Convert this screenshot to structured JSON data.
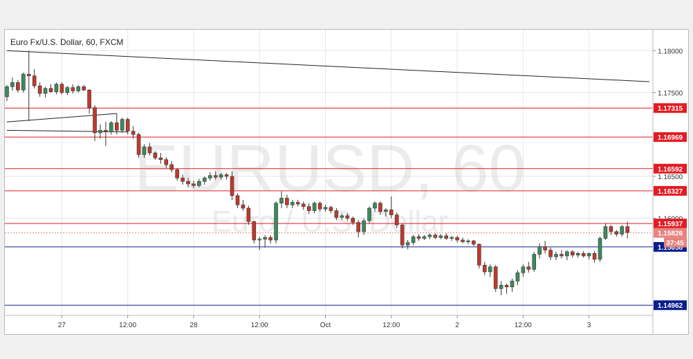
{
  "chart_data": {
    "type": "candlestick",
    "title": "Euro Fx/U.S. Dollar, 60, FXCM",
    "watermark": {
      "symbol": "EURUSD, 60",
      "description": "Euro / U.S. Dollar"
    },
    "ylim": [
      1.1484,
      1.1825
    ],
    "y_ticks": [
      {
        "value": 1.18,
        "label": "1.18000"
      },
      {
        "value": 1.175,
        "label": "1.17500"
      },
      {
        "value": 1.165,
        "label": "1.16500"
      },
      {
        "value": 1.16,
        "label": "1.16000"
      }
    ],
    "x_ticks": [
      {
        "index": 10,
        "label": "27"
      },
      {
        "index": 22,
        "label": "12:00"
      },
      {
        "index": 34,
        "label": "28"
      },
      {
        "index": 46,
        "label": "12:00"
      },
      {
        "index": 58,
        "label": "Oct"
      },
      {
        "index": 70,
        "label": "12:00"
      },
      {
        "index": 82,
        "label": "2"
      },
      {
        "index": 94,
        "label": "12:00"
      },
      {
        "index": 106,
        "label": "3"
      }
    ],
    "levels": [
      {
        "value": 1.17315,
        "label": "1.17315",
        "color": "#e31b23"
      },
      {
        "value": 1.16969,
        "label": "1.16969",
        "color": "#e31b23"
      },
      {
        "value": 1.16592,
        "label": "1.16592",
        "color": "#e31b23"
      },
      {
        "value": 1.16327,
        "label": "1.16327",
        "color": "#e31b23"
      },
      {
        "value": 1.15937,
        "label": "1.15937",
        "color": "#e31b23"
      },
      {
        "value": 1.15658,
        "label": "1.15658",
        "color": "#0a1f8f"
      },
      {
        "value": 1.14962,
        "label": "1.14962",
        "color": "#0a1f8f"
      }
    ],
    "current_price": {
      "value": 1.15826,
      "label": "1.15826",
      "countdown": "37:45",
      "color": "#e8837f"
    },
    "trendlines": [
      {
        "from": [
          0,
          1.18
        ],
        "to": [
          117,
          1.1763
        ]
      },
      {
        "from": [
          0,
          1.1715
        ],
        "to": [
          20,
          1.1725
        ]
      },
      {
        "from": [
          0,
          1.1705
        ],
        "to": [
          22,
          1.1703
        ]
      }
    ],
    "colors": {
      "up": "#3c8a5e",
      "down": "#c0392b",
      "grid": "#e6e6e6"
    },
    "candles": [
      [
        1.1745,
        1.1759,
        1.174,
        1.1757
      ],
      [
        1.1757,
        1.1768,
        1.1752,
        1.1762
      ],
      [
        1.1762,
        1.1765,
        1.175,
        1.1753
      ],
      [
        1.1753,
        1.1774,
        1.175,
        1.1772
      ],
      [
        1.1772,
        1.18,
        1.1716,
        1.177
      ],
      [
        1.177,
        1.1778,
        1.1755,
        1.1758
      ],
      [
        1.1758,
        1.1762,
        1.1745,
        1.1749
      ],
      [
        1.1749,
        1.1757,
        1.1744,
        1.1755
      ],
      [
        1.1755,
        1.176,
        1.175,
        1.1751
      ],
      [
        1.1751,
        1.1762,
        1.1748,
        1.176
      ],
      [
        1.176,
        1.1762,
        1.1748,
        1.175
      ],
      [
        1.175,
        1.1758,
        1.1747,
        1.1756
      ],
      [
        1.1756,
        1.176,
        1.1749,
        1.1752
      ],
      [
        1.1752,
        1.1759,
        1.175,
        1.1757
      ],
      [
        1.1757,
        1.1759,
        1.1752,
        1.1753
      ],
      [
        1.1753,
        1.1754,
        1.1725,
        1.1732
      ],
      [
        1.1732,
        1.1735,
        1.1692,
        1.1702
      ],
      [
        1.1702,
        1.1712,
        1.1695,
        1.1705
      ],
      [
        1.1705,
        1.1715,
        1.1686,
        1.1703
      ],
      [
        1.1703,
        1.1716,
        1.17,
        1.1714
      ],
      [
        1.1714,
        1.1725,
        1.17,
        1.1705
      ],
      [
        1.1705,
        1.172,
        1.1702,
        1.1718
      ],
      [
        1.1718,
        1.172,
        1.17,
        1.1704
      ],
      [
        1.1704,
        1.171,
        1.1695,
        1.17
      ],
      [
        1.17,
        1.1702,
        1.1672,
        1.1676
      ],
      [
        1.1676,
        1.1688,
        1.1672,
        1.1685
      ],
      [
        1.1685,
        1.169,
        1.1675,
        1.1678
      ],
      [
        1.1678,
        1.168,
        1.167,
        1.1672
      ],
      [
        1.1672,
        1.1678,
        1.1665,
        1.167
      ],
      [
        1.167,
        1.1673,
        1.166,
        1.1664
      ],
      [
        1.1664,
        1.1668,
        1.1655,
        1.1658
      ],
      [
        1.1658,
        1.166,
        1.1645,
        1.1648
      ],
      [
        1.1648,
        1.1652,
        1.164,
        1.1644
      ],
      [
        1.1644,
        1.1648,
        1.1637,
        1.1641
      ],
      [
        1.1641,
        1.1645,
        1.1636,
        1.1639
      ],
      [
        1.1639,
        1.1647,
        1.1637,
        1.1644
      ],
      [
        1.1644,
        1.165,
        1.164,
        1.1648
      ],
      [
        1.1648,
        1.1655,
        1.1645,
        1.1651
      ],
      [
        1.1651,
        1.1656,
        1.1646,
        1.1649
      ],
      [
        1.1649,
        1.1654,
        1.1646,
        1.1652
      ],
      [
        1.1652,
        1.1654,
        1.1646,
        1.165
      ],
      [
        1.165,
        1.1656,
        1.1622,
        1.1627
      ],
      [
        1.1627,
        1.163,
        1.1612,
        1.1616
      ],
      [
        1.1616,
        1.1622,
        1.1609,
        1.1612
      ],
      [
        1.1612,
        1.1615,
        1.1592,
        1.1596
      ],
      [
        1.1596,
        1.1597,
        1.157,
        1.1574
      ],
      [
        1.1574,
        1.1578,
        1.1562,
        1.1575
      ],
      [
        1.1575,
        1.158,
        1.1565,
        1.1577
      ],
      [
        1.1577,
        1.158,
        1.157,
        1.1574
      ],
      [
        1.1574,
        1.162,
        1.157,
        1.1618
      ],
      [
        1.1618,
        1.1632,
        1.1612,
        1.1624
      ],
      [
        1.1624,
        1.1628,
        1.1612,
        1.1616
      ],
      [
        1.1616,
        1.1622,
        1.1612,
        1.1619
      ],
      [
        1.1619,
        1.1622,
        1.1614,
        1.1617
      ],
      [
        1.1617,
        1.162,
        1.161,
        1.1614
      ],
      [
        1.1614,
        1.1618,
        1.1605,
        1.1609
      ],
      [
        1.1609,
        1.162,
        1.1606,
        1.1618
      ],
      [
        1.1618,
        1.162,
        1.1608,
        1.1611
      ],
      [
        1.1611,
        1.1616,
        1.1608,
        1.1613
      ],
      [
        1.1613,
        1.1615,
        1.1606,
        1.1609
      ],
      [
        1.1609,
        1.1612,
        1.1598,
        1.1601
      ],
      [
        1.1601,
        1.1606,
        1.1598,
        1.1603
      ],
      [
        1.1603,
        1.1606,
        1.1597,
        1.16
      ],
      [
        1.16,
        1.1602,
        1.1592,
        1.1595
      ],
      [
        1.1595,
        1.1598,
        1.1577,
        1.1584
      ],
      [
        1.1584,
        1.16,
        1.158,
        1.1597
      ],
      [
        1.1597,
        1.1614,
        1.1594,
        1.1612
      ],
      [
        1.1612,
        1.162,
        1.1608,
        1.1618
      ],
      [
        1.1618,
        1.162,
        1.1604,
        1.1608
      ],
      [
        1.1608,
        1.1612,
        1.1602,
        1.161
      ],
      [
        1.161,
        1.1626,
        1.16,
        1.1604
      ],
      [
        1.1604,
        1.1607,
        1.1588,
        1.1592
      ],
      [
        1.1592,
        1.1594,
        1.1564,
        1.1568
      ],
      [
        1.1568,
        1.1574,
        1.1563,
        1.1571
      ],
      [
        1.1571,
        1.158,
        1.1568,
        1.1578
      ],
      [
        1.1578,
        1.1581,
        1.1573,
        1.1576
      ],
      [
        1.1576,
        1.158,
        1.1574,
        1.1578
      ],
      [
        1.1578,
        1.1582,
        1.1575,
        1.158
      ],
      [
        1.158,
        1.1582,
        1.1575,
        1.1577
      ],
      [
        1.1577,
        1.1581,
        1.1575,
        1.1579
      ],
      [
        1.1579,
        1.1582,
        1.1574,
        1.1576
      ],
      [
        1.1576,
        1.1579,
        1.1573,
        1.1577
      ],
      [
        1.1577,
        1.1579,
        1.1571,
        1.1574
      ],
      [
        1.1574,
        1.1577,
        1.157,
        1.1572
      ],
      [
        1.1572,
        1.1575,
        1.1569,
        1.1573
      ],
      [
        1.1573,
        1.1574,
        1.1567,
        1.1569
      ],
      [
        1.1569,
        1.157,
        1.154,
        1.1544
      ],
      [
        1.1544,
        1.1548,
        1.1532,
        1.1536
      ],
      [
        1.1536,
        1.1545,
        1.153,
        1.1542
      ],
      [
        1.1542,
        1.1544,
        1.1512,
        1.1516
      ],
      [
        1.1516,
        1.1525,
        1.1508,
        1.152
      ],
      [
        1.152,
        1.1522,
        1.151,
        1.1518
      ],
      [
        1.1518,
        1.1528,
        1.1512,
        1.1525
      ],
      [
        1.1525,
        1.1538,
        1.152,
        1.1535
      ],
      [
        1.1535,
        1.1545,
        1.153,
        1.1542
      ],
      [
        1.1542,
        1.1548,
        1.1535,
        1.1539
      ],
      [
        1.1539,
        1.156,
        1.1536,
        1.1557
      ],
      [
        1.1557,
        1.157,
        1.1552,
        1.1566
      ],
      [
        1.1566,
        1.1573,
        1.1558,
        1.1562
      ],
      [
        1.1562,
        1.1565,
        1.155,
        1.1554
      ],
      [
        1.1554,
        1.156,
        1.155,
        1.1557
      ],
      [
        1.1557,
        1.1562,
        1.1552,
        1.1555
      ],
      [
        1.1555,
        1.1562,
        1.155,
        1.156
      ],
      [
        1.156,
        1.1562,
        1.1553,
        1.1556
      ],
      [
        1.1556,
        1.156,
        1.1553,
        1.1558
      ],
      [
        1.1558,
        1.1561,
        1.1553,
        1.1555
      ],
      [
        1.1555,
        1.1559,
        1.1551,
        1.1558
      ],
      [
        1.1558,
        1.1561,
        1.1547,
        1.1551
      ],
      [
        1.1551,
        1.1578,
        1.1548,
        1.1576
      ],
      [
        1.1576,
        1.1594,
        1.1574,
        1.159
      ],
      [
        1.159,
        1.1592,
        1.158,
        1.1584
      ],
      [
        1.1584,
        1.1586,
        1.1578,
        1.1581
      ],
      [
        1.1581,
        1.1592,
        1.1578,
        1.159
      ],
      [
        1.159,
        1.1596,
        1.1576,
        1.1583
      ]
    ]
  }
}
